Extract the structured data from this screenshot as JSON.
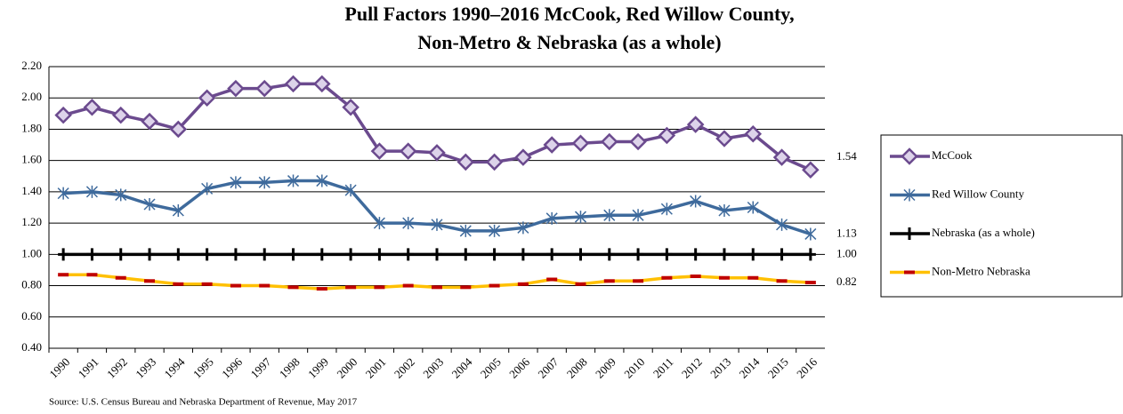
{
  "chart_data": {
    "type": "line",
    "title": [
      "Pull Factors 1990–2016 McCook, Red Willow County,",
      "Non-Metro & Nebraska (as a whole)"
    ],
    "source": "Source: U.S. Census Bureau and Nebraska Department of Revenue, May 2017",
    "categories": [
      "1990",
      "1991",
      "1992",
      "1993",
      "1994",
      "1995",
      "1996",
      "1997",
      "1998",
      "1999",
      "2000",
      "2001",
      "2002",
      "2003",
      "2004",
      "2005",
      "2006",
      "2007",
      "2008",
      "2009",
      "2010",
      "2011",
      "2012",
      "2013",
      "2014",
      "2015",
      "2016"
    ],
    "ylim": [
      0.4,
      2.2
    ],
    "yticks": [
      {
        "value": 0.4,
        "label": "0.40"
      },
      {
        "value": 0.6,
        "label": "0.60"
      },
      {
        "value": 0.8,
        "label": "0.80"
      },
      {
        "value": 1.0,
        "label": "1.00"
      },
      {
        "value": 1.2,
        "label": "1.20"
      },
      {
        "value": 1.4,
        "label": "1.40"
      },
      {
        "value": 1.6,
        "label": "1.60"
      },
      {
        "value": 1.8,
        "label": "1.80"
      },
      {
        "value": 2.0,
        "label": "2.00"
      },
      {
        "value": 2.2,
        "label": "2.20"
      }
    ],
    "grid": true,
    "legend": "right",
    "series": [
      {
        "name": "McCook",
        "color": "#6b4a8e",
        "marker": "diamond",
        "values": [
          1.89,
          1.94,
          1.89,
          1.85,
          1.8,
          2.0,
          2.06,
          2.06,
          2.09,
          2.09,
          1.94,
          1.66,
          1.66,
          1.65,
          1.59,
          1.59,
          1.62,
          1.7,
          1.71,
          1.72,
          1.72,
          1.76,
          1.83,
          1.74,
          1.77,
          1.62,
          1.54
        ],
        "value_labels": [
          null,
          null,
          null,
          null,
          null,
          null,
          null,
          null,
          null,
          null,
          null,
          null,
          null,
          null,
          null,
          null,
          null,
          null,
          null,
          null,
          null,
          null,
          null,
          null,
          null,
          null,
          "1.54"
        ]
      },
      {
        "name": "Red Willow County",
        "color": "#3e6a9c",
        "marker": "star",
        "values": [
          1.39,
          1.4,
          1.38,
          1.32,
          1.28,
          1.42,
          1.46,
          1.46,
          1.47,
          1.47,
          1.41,
          1.2,
          1.2,
          1.19,
          1.15,
          1.15,
          1.17,
          1.23,
          1.24,
          1.25,
          1.25,
          1.29,
          1.34,
          1.28,
          1.3,
          1.19,
          1.13
        ],
        "value_labels": [
          null,
          null,
          null,
          null,
          null,
          null,
          null,
          null,
          null,
          null,
          null,
          null,
          null,
          null,
          null,
          null,
          null,
          null,
          null,
          null,
          null,
          null,
          null,
          null,
          null,
          null,
          "1.13"
        ]
      },
      {
        "name": "Nebraska (as a whole)",
        "color": "#000000",
        "marker": "plus",
        "values": [
          1,
          1,
          1,
          1,
          1,
          1,
          1,
          1,
          1,
          1,
          1,
          1,
          1,
          1,
          1,
          1,
          1,
          1,
          1,
          1,
          1,
          1,
          1,
          1,
          1,
          1,
          1
        ],
        "value_labels": [
          null,
          null,
          null,
          null,
          null,
          null,
          null,
          null,
          null,
          null,
          null,
          null,
          null,
          null,
          null,
          null,
          null,
          null,
          null,
          null,
          null,
          null,
          null,
          null,
          null,
          null,
          "1.00"
        ]
      },
      {
        "name": "Non-Metro Nebraska",
        "color": "#ffc000",
        "marker": "dash",
        "marker_color": "#c00000",
        "values": [
          0.87,
          0.87,
          0.85,
          0.83,
          0.81,
          0.81,
          0.8,
          0.8,
          0.79,
          0.78,
          0.79,
          0.79,
          0.8,
          0.79,
          0.79,
          0.8,
          0.81,
          0.84,
          0.81,
          0.83,
          0.83,
          0.85,
          0.86,
          0.85,
          0.85,
          0.83,
          0.82
        ],
        "value_labels": [
          null,
          null,
          null,
          null,
          null,
          null,
          null,
          null,
          null,
          null,
          null,
          null,
          null,
          null,
          null,
          null,
          null,
          null,
          null,
          null,
          null,
          null,
          null,
          null,
          null,
          null,
          "0.82"
        ]
      }
    ]
  }
}
